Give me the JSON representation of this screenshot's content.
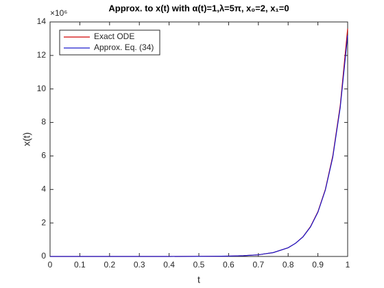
{
  "chart_data": {
    "type": "line",
    "title": "Approx. to x(t) with α(t)=1,λ=5π, x₀=2, x₁=0",
    "xlabel": "t",
    "ylabel": "x(t)",
    "y_exponent_label": "×10⁶",
    "x": [
      0,
      0.1,
      0.2,
      0.3,
      0.4,
      0.5,
      0.55,
      0.6,
      0.65,
      0.7,
      0.75,
      0.8,
      0.825,
      0.85,
      0.875,
      0.9,
      0.925,
      0.95,
      0.975,
      1.0
    ],
    "series": [
      {
        "name": "Exact ODE",
        "color": "#d00000",
        "values": [
          0,
          0,
          0,
          0,
          0.001,
          0.004,
          0.009,
          0.02,
          0.046,
          0.1,
          0.23,
          0.52,
          0.79,
          1.18,
          1.78,
          2.67,
          4.0,
          6.0,
          9.0,
          13.6
        ]
      },
      {
        "name": "Approx. Eq. (34)",
        "color": "#1a1acc",
        "values": [
          0,
          0,
          0,
          0,
          0.001,
          0.004,
          0.009,
          0.02,
          0.046,
          0.1,
          0.23,
          0.52,
          0.79,
          1.17,
          1.76,
          2.64,
          3.96,
          5.92,
          8.88,
          13.2
        ]
      }
    ],
    "xlim": [
      0,
      1
    ],
    "xticks": [
      0,
      0.1,
      0.2,
      0.3,
      0.4,
      0.5,
      0.6,
      0.7,
      0.8,
      0.9,
      1
    ],
    "ylim": [
      0,
      14
    ],
    "yticks": [
      0,
      2,
      4,
      6,
      8,
      10,
      12,
      14
    ],
    "grid": false,
    "legend": "upper-left"
  }
}
